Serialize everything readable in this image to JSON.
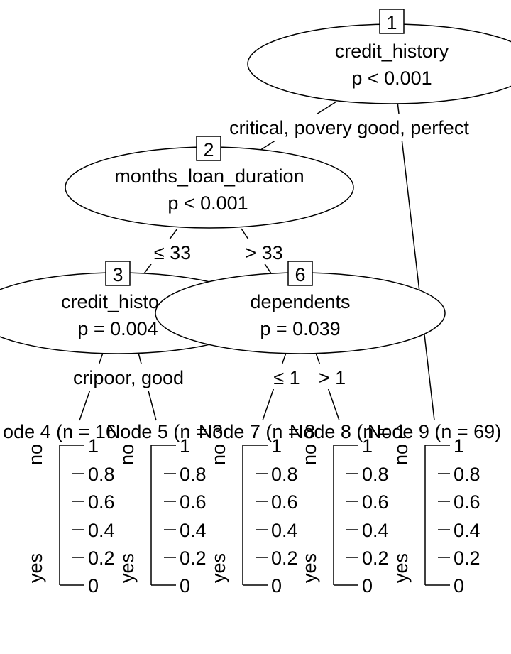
{
  "nodes": {
    "n1": {
      "id": "1",
      "variable": "credit_history",
      "p": "p < 0.001"
    },
    "n2": {
      "id": "2",
      "variable": "months_loan_duration",
      "p": "p < 0.001"
    },
    "n3": {
      "id": "3",
      "variable": "credit_histo",
      "p": "p = 0.004"
    },
    "n6": {
      "id": "6",
      "variable": "dependents",
      "p": "p = 0.039"
    }
  },
  "edges": {
    "e1": "critical, povery good, perfect",
    "e2_left": "≤ 33",
    "e2_right": "> 33",
    "e3": "cripoor, good",
    "e6_left": "≤ 1",
    "e6_right": "> 1"
  },
  "terminals": [
    {
      "title": "ode 4 (n = 16",
      "overlap": "Node 5 (n = 3"
    },
    {
      "title": "Node 5 (n = 3",
      "overlap": "Node 7 (n = 8"
    },
    {
      "title": "Node 7 (n = 8",
      "overlap": "Node 8 (n = 1"
    },
    {
      "title": "Node 8 (n = 1",
      "overlap": "Node 9 (n = 69)"
    },
    {
      "title": "Node 9 (n = 69)",
      "overlap": ""
    }
  ],
  "axis": {
    "top_label": "no",
    "bottom_label": "yes",
    "ticks": [
      "1",
      "0.8",
      "0.6",
      "0.4",
      "0.2",
      "0"
    ]
  },
  "colors": {
    "stroke": "#000000",
    "background": "#ffffff"
  }
}
